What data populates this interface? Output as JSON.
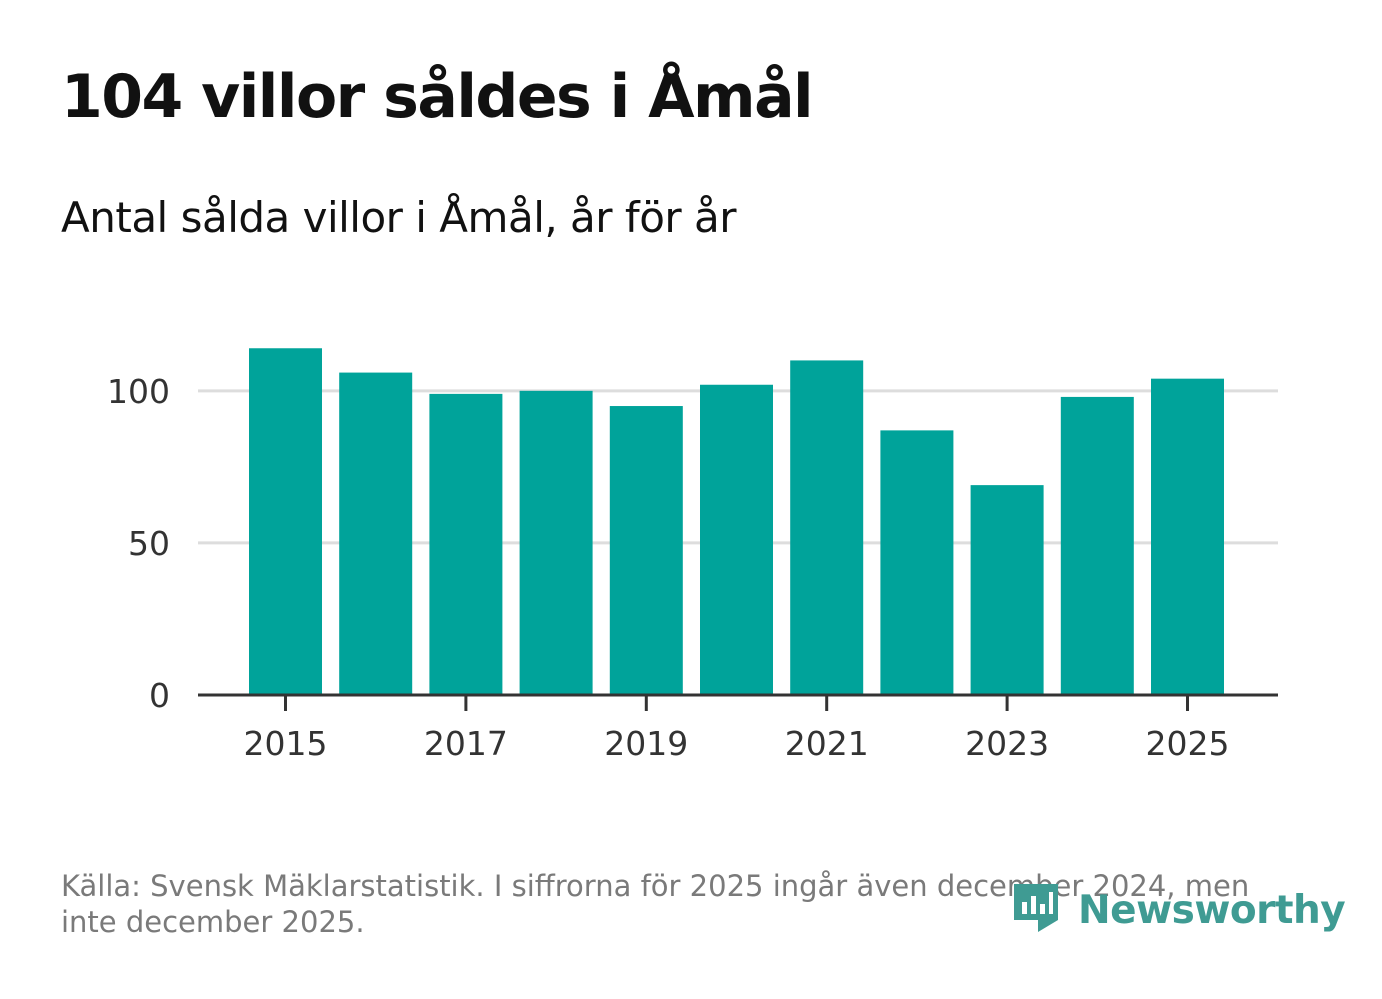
{
  "title": "104 villor såldes i Åmål",
  "subtitle": "Antal sålda villor i Åmål, år för år",
  "source_note": "Källa: Svensk Mäklarstatistik. I siffrorna för 2025 ingår även december 2024, men inte december 2025.",
  "brand": {
    "name": "Newsworthy",
    "icon": "newsworthy-logo-icon",
    "color": "#3f9b93"
  },
  "colors": {
    "bar": "#00a39a",
    "grid": "#dddddd",
    "axis": "#333333"
  },
  "chart_data": {
    "type": "bar",
    "categories": [
      "2015",
      "2016",
      "2017",
      "2018",
      "2019",
      "2020",
      "2021",
      "2022",
      "2023",
      "2024",
      "2025"
    ],
    "values": [
      114,
      106,
      99,
      100,
      95,
      102,
      110,
      87,
      69,
      98,
      104
    ],
    "x_tick_labels": [
      "2015",
      "2017",
      "2019",
      "2021",
      "2023",
      "2025"
    ],
    "y_ticks": [
      0,
      50,
      100
    ],
    "ylim": [
      0,
      120
    ],
    "title": "104 villor såldes i Åmål",
    "subtitle": "Antal sålda villor i Åmål, år för år",
    "xlabel": "",
    "ylabel": "",
    "grid": true,
    "legend": "none"
  }
}
